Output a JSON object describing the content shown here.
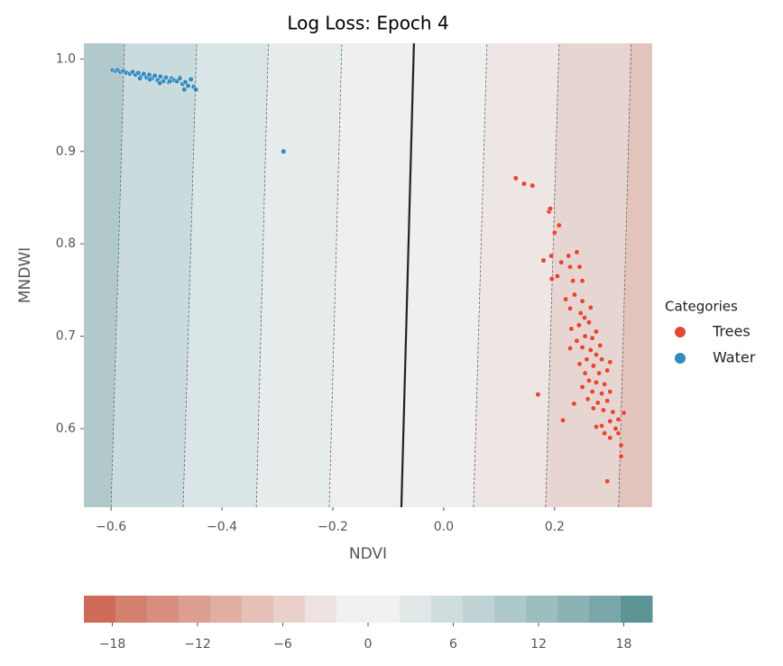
{
  "chart_data": {
    "type": "scatter",
    "title": "Log Loss: Epoch    4",
    "x_label": "NDVI",
    "y_label": "MNDWI",
    "xlim": [
      -0.649,
      0.376
    ],
    "ylim": [
      0.515,
      1.017
    ],
    "xticks": [
      {
        "value": -0.6,
        "label": "−0.6"
      },
      {
        "value": -0.4,
        "label": "−0.4"
      },
      {
        "value": -0.2,
        "label": "−0.2"
      },
      {
        "value": 0.0,
        "label": "0.0"
      },
      {
        "value": 0.2,
        "label": "0.2"
      }
    ],
    "yticks": [
      {
        "value": 0.6,
        "label": "0.6"
      },
      {
        "value": 0.7,
        "label": "0.7"
      },
      {
        "value": 0.8,
        "label": "0.8"
      },
      {
        "value": 0.9,
        "label": "0.9"
      },
      {
        "value": 1.0,
        "label": "1.0"
      }
    ],
    "grid": false,
    "band_colors": [
      "#b1c9ca",
      "#c9dbdc",
      "#d9e5e6",
      "#e6ebeb",
      "#efefef",
      "#ede6e5",
      "#e7d5d2",
      "#e3c4bc"
    ],
    "contours": [
      {
        "x": [
          -0.6,
          -0.5756
        ]
      },
      {
        "x": [
          -0.47,
          -0.4455
        ]
      },
      {
        "x": [
          -0.338,
          -0.3163
        ]
      },
      {
        "x": [
          -0.2065,
          -0.1837
        ]
      },
      {
        "x": [
          0.0537,
          0.078
        ]
      },
      {
        "x": [
          0.1837,
          0.2081
        ]
      },
      {
        "x": [
          0.3154,
          0.3382
        ]
      }
    ],
    "boundary": {
      "x": [
        -0.0764,
        -0.0537
      ]
    },
    "legend_title": "Categories",
    "legend_position": "right",
    "series": [
      {
        "name": "Trees",
        "color": "#e24a33",
        "x": [
          0.13,
          0.145,
          0.16,
          0.19,
          0.192,
          0.208,
          0.2,
          0.17,
          0.215,
          0.295,
          0.32,
          0.32,
          0.3,
          0.18,
          0.194,
          0.205,
          0.225,
          0.24,
          0.228,
          0.212,
          0.245,
          0.195,
          0.233,
          0.25,
          0.236,
          0.22,
          0.25,
          0.228,
          0.265,
          0.247,
          0.254,
          0.23,
          0.244,
          0.262,
          0.275,
          0.255,
          0.268,
          0.24,
          0.282,
          0.25,
          0.265,
          0.228,
          0.275,
          0.258,
          0.285,
          0.245,
          0.27,
          0.3,
          0.255,
          0.28,
          0.295,
          0.262,
          0.275,
          0.29,
          0.25,
          0.268,
          0.285,
          0.3,
          0.26,
          0.278,
          0.295,
          0.288,
          0.305,
          0.27,
          0.3,
          0.315,
          0.285,
          0.31,
          0.325,
          0.29,
          0.315,
          0.235,
          0.275
        ],
        "values": [
          0.871,
          0.865,
          0.863,
          0.835,
          0.838,
          0.82,
          0.812,
          0.637,
          0.609,
          0.543,
          0.57,
          0.582,
          0.59,
          0.782,
          0.787,
          0.765,
          0.787,
          0.791,
          0.775,
          0.78,
          0.775,
          0.762,
          0.76,
          0.76,
          0.745,
          0.74,
          0.738,
          0.73,
          0.731,
          0.725,
          0.72,
          0.708,
          0.712,
          0.715,
          0.705,
          0.7,
          0.698,
          0.695,
          0.69,
          0.688,
          0.685,
          0.687,
          0.68,
          0.675,
          0.675,
          0.67,
          0.668,
          0.672,
          0.66,
          0.66,
          0.663,
          0.652,
          0.65,
          0.648,
          0.645,
          0.64,
          0.638,
          0.64,
          0.632,
          0.628,
          0.63,
          0.62,
          0.618,
          0.622,
          0.608,
          0.61,
          0.603,
          0.6,
          0.617,
          0.595,
          0.595,
          0.627,
          0.602
        ]
      },
      {
        "name": "Water",
        "color": "#348abd",
        "x": [
          -0.597,
          -0.592,
          -0.588,
          -0.583,
          -0.578,
          -0.572,
          -0.566,
          -0.561,
          -0.556,
          -0.551,
          -0.546,
          -0.541,
          -0.536,
          -0.531,
          -0.526,
          -0.521,
          -0.516,
          -0.511,
          -0.506,
          -0.501,
          -0.496,
          -0.491,
          -0.486,
          -0.481,
          -0.476,
          -0.471,
          -0.466,
          -0.461,
          -0.456,
          -0.451,
          -0.548,
          -0.53,
          -0.512,
          -0.494,
          -0.476,
          -0.468,
          -0.447,
          -0.289
        ],
        "values": [
          0.988,
          0.987,
          0.988,
          0.986,
          0.987,
          0.985,
          0.984,
          0.986,
          0.983,
          0.985,
          0.981,
          0.984,
          0.98,
          0.983,
          0.979,
          0.982,
          0.977,
          0.981,
          0.976,
          0.98,
          0.975,
          0.979,
          0.977,
          0.976,
          0.98,
          0.973,
          0.975,
          0.971,
          0.978,
          0.97,
          0.979,
          0.978,
          0.974,
          0.976,
          0.979,
          0.967,
          0.967,
          0.9
        ]
      }
    ],
    "colorbar": {
      "lim": [
        -20,
        20
      ],
      "colors": [
        "#ce6c59",
        "#d3806f",
        "#d88f7f",
        "#dc9e90",
        "#e1aea3",
        "#e6c0b7",
        "#e9d0cb",
        "#ede2df",
        "#f0f0f0",
        "#f0f0f0",
        "#dfe7e7",
        "#cfdddd",
        "#bfd3d4",
        "#aec8c9",
        "#9dbebf",
        "#8cb3b4",
        "#7aa8aa",
        "#5d9597"
      ],
      "ticks": [
        {
          "value": -18,
          "label": "−18"
        },
        {
          "value": -12,
          "label": "−12"
        },
        {
          "value": -6,
          "label": "−6"
        },
        0,
        6,
        12,
        18
      ]
    }
  }
}
